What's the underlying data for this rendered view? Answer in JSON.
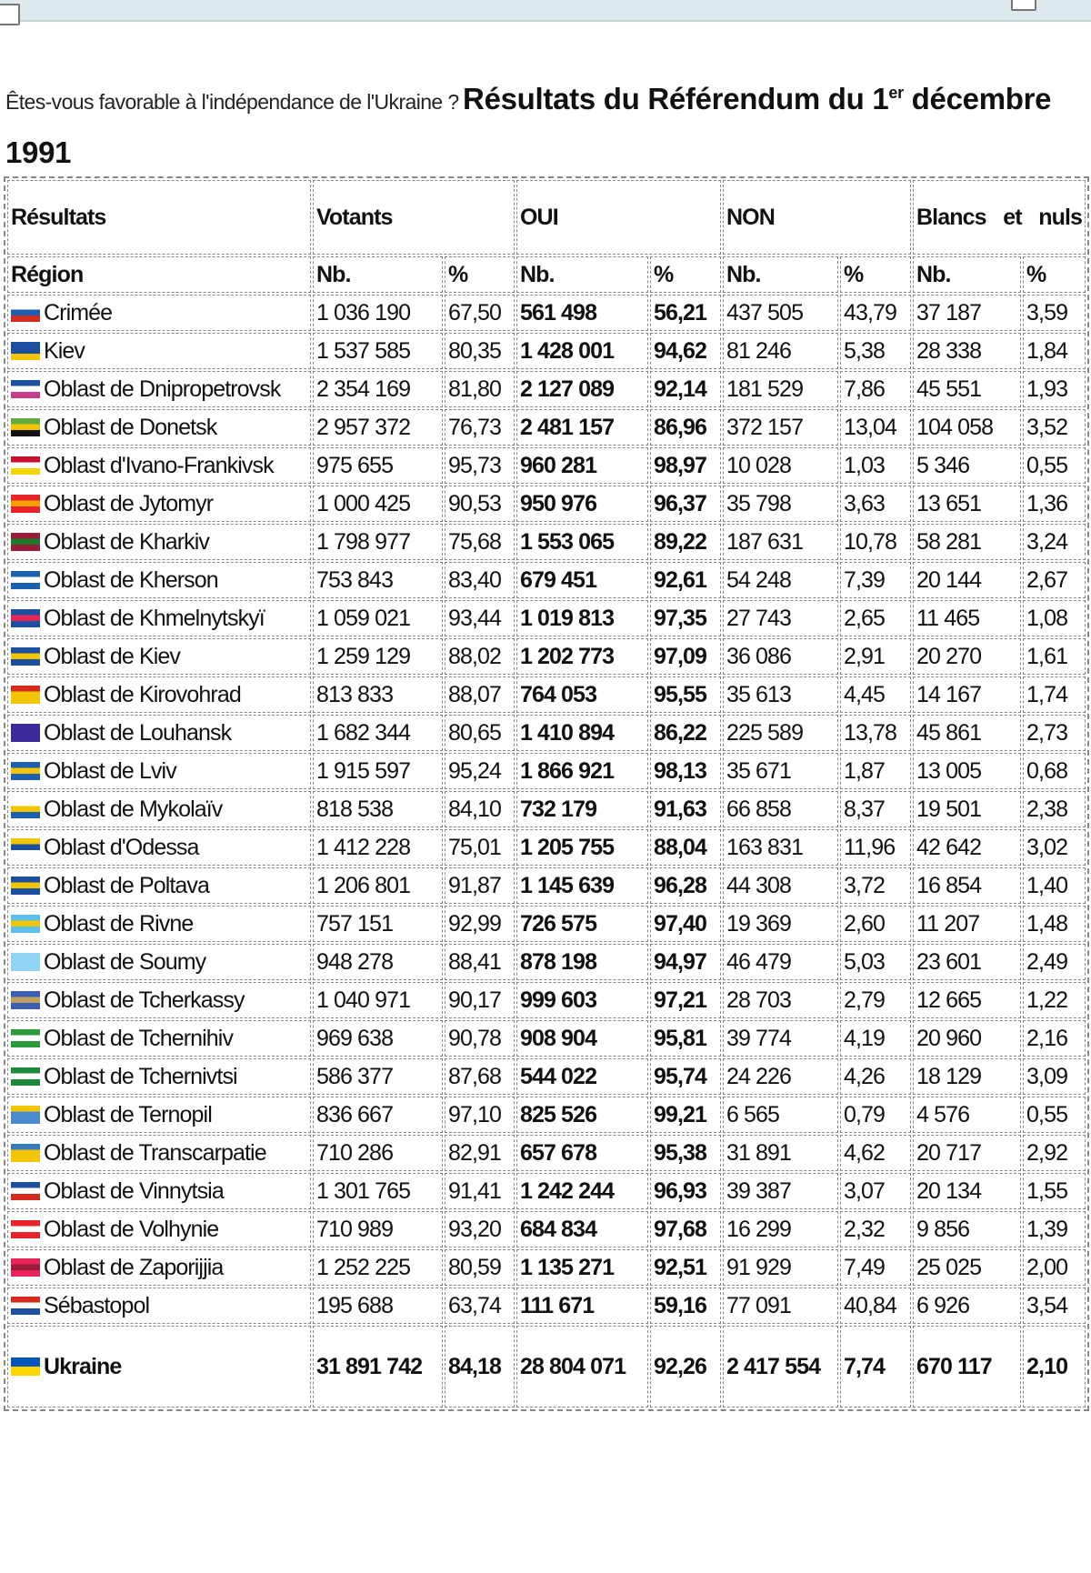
{
  "title": {
    "question": "Êtes-vous favorable à l'indépendance de l'Ukraine ?",
    "heading_pre": "Résultats du Référendum du 1",
    "heading_sup": "er",
    "heading_post": " décembre 1991"
  },
  "table": {
    "group_headers": [
      "Résultats",
      "Votants",
      "OUI",
      "NON",
      "Blancs et nuls"
    ],
    "sub_headers": [
      "Région",
      "Nb.",
      "%",
      "Nb.",
      "%",
      "Nb.",
      "%",
      "Nb.",
      "%"
    ],
    "rows": [
      {
        "region": "Crimée",
        "flag": [
          "#ffffff",
          "#1c5fb0",
          "#d52b1e"
        ],
        "cells": [
          "1 036 190",
          "67,50",
          "561 498",
          "56,21",
          "437 505",
          "43,79",
          "37 187",
          "3,59"
        ]
      },
      {
        "region": "Kiev",
        "flag": [
          "#1c4fa0",
          "#1c4fa0",
          "#f2c500"
        ],
        "cells": [
          "1 537 585",
          "80,35",
          "1 428 001",
          "94,62",
          "81 246",
          "5,38",
          "28 338",
          "1,84"
        ]
      },
      {
        "region": "Oblast de Dnipropetrovsk",
        "flag": [
          "#1c4fa0",
          "#ffffff",
          "#c83c8c"
        ],
        "cells": [
          "2 354 169",
          "81,80",
          "2 127 089",
          "92,14",
          "181 529",
          "7,86",
          "45 551",
          "1,93"
        ]
      },
      {
        "region": "Oblast de Donetsk",
        "flag": [
          "#66aa44",
          "#f2c500",
          "#111111"
        ],
        "cells": [
          "2 957 372",
          "76,73",
          "2 481 157",
          "86,96",
          "372 157",
          "13,04",
          "104 058",
          "3,52"
        ]
      },
      {
        "region": "Oblast d'Ivano-Frankivsk",
        "flag": [
          "#c8102e",
          "#ffffff",
          "#f2d500"
        ],
        "cells": [
          "975 655",
          "95,73",
          "960 281",
          "98,97",
          "10 028",
          "1,03",
          "5 346",
          "0,55"
        ]
      },
      {
        "region": "Oblast de Jytomyr",
        "flag": [
          "#e8242a",
          "#f5a000",
          "#e8242a"
        ],
        "cells": [
          "1 000 425",
          "90,53",
          "950 976",
          "96,37",
          "35 798",
          "3,63",
          "13 651",
          "1,36"
        ]
      },
      {
        "region": "Oblast de Kharkiv",
        "flag": [
          "#9b1c3a",
          "#1c7a2a",
          "#9b1c3a"
        ],
        "cells": [
          "1 798 977",
          "75,68",
          "1 553 065",
          "89,22",
          "187 631",
          "10,78",
          "58 281",
          "3,24"
        ]
      },
      {
        "region": "Oblast de Kherson",
        "flag": [
          "#1c5fb0",
          "#ffffff",
          "#1c5fb0"
        ],
        "cells": [
          "753 843",
          "83,40",
          "679 451",
          "92,61",
          "54 248",
          "7,39",
          "20 144",
          "2,67"
        ]
      },
      {
        "region": "Oblast de Khmelnytskyï",
        "flag": [
          "#1c4fa0",
          "#e8245a",
          "#1c4fa0"
        ],
        "cells": [
          "1 059 021",
          "93,44",
          "1 019 813",
          "97,35",
          "27 743",
          "2,65",
          "11 465",
          "1,08"
        ]
      },
      {
        "region": "Oblast de Kiev",
        "flag": [
          "#1c4fa0",
          "#f2c500",
          "#1c4fa0"
        ],
        "cells": [
          "1 259 129",
          "88,02",
          "1 202 773",
          "97,09",
          "36 086",
          "2,91",
          "20 270",
          "1,61"
        ]
      },
      {
        "region": "Oblast de Kirovohrad",
        "flag": [
          "#d52b1e",
          "#f2c500",
          "#f2c500"
        ],
        "cells": [
          "813 833",
          "88,07",
          "764 053",
          "95,55",
          "35 613",
          "4,45",
          "14 167",
          "1,74"
        ]
      },
      {
        "region": "Oblast de Louhansk",
        "flag": [
          "#3a2a9a",
          "#3a2a9a",
          "#3a2a9a"
        ],
        "cells": [
          "1 682 344",
          "80,65",
          "1 410 894",
          "86,22",
          "225 589",
          "13,78",
          "45 861",
          "2,73"
        ]
      },
      {
        "region": "Oblast de Lviv",
        "flag": [
          "#1c5fb0",
          "#f2c500",
          "#1c5fb0"
        ],
        "cells": [
          "1 915 597",
          "95,24",
          "1 866 921",
          "98,13",
          "35 671",
          "1,87",
          "13 005",
          "0,68"
        ]
      },
      {
        "region": "Oblast de Mykolaïv",
        "flag": [
          "#ffffff",
          "#f2c500",
          "#1c5fb0"
        ],
        "cells": [
          "818 538",
          "84,10",
          "732 179",
          "91,63",
          "66 858",
          "8,37",
          "19 501",
          "2,38"
        ]
      },
      {
        "region": "Oblast d'Odessa",
        "flag": [
          "#f2c500",
          "#1c4fa0",
          "#ffffff"
        ],
        "cells": [
          "1 412 228",
          "75,01",
          "1 205 755",
          "88,04",
          "163 831",
          "11,96",
          "42 642",
          "3,02"
        ]
      },
      {
        "region": "Oblast de Poltava",
        "flag": [
          "#1c4fa0",
          "#f2c500",
          "#1c4fa0"
        ],
        "cells": [
          "1 206 801",
          "91,87",
          "1 145 639",
          "96,28",
          "44 308",
          "3,72",
          "16 854",
          "1,40"
        ]
      },
      {
        "region": "Oblast de Rivne",
        "flag": [
          "#5bc0eb",
          "#f2c500",
          "#5bc0eb"
        ],
        "cells": [
          "757 151",
          "92,99",
          "726 575",
          "97,40",
          "19 369",
          "2,60",
          "11 207",
          "1,48"
        ]
      },
      {
        "region": "Oblast de Soumy",
        "flag": [
          "#8fd4f0",
          "#8fd4f0",
          "#8fd4f0"
        ],
        "cells": [
          "948 278",
          "88,41",
          "878 198",
          "94,97",
          "46 479",
          "5,03",
          "23 601",
          "2,49"
        ]
      },
      {
        "region": "Oblast de Tcherkassy",
        "flag": [
          "#3a5fb0",
          "#c0a060",
          "#3a5fb0"
        ],
        "cells": [
          "1 040 971",
          "90,17",
          "999 603",
          "97,21",
          "28 703",
          "2,79",
          "12 665",
          "1,22"
        ]
      },
      {
        "region": "Oblast de Tchernihiv",
        "flag": [
          "#2a9a3a",
          "#ffffff",
          "#2a9a3a"
        ],
        "cells": [
          "969 638",
          "90,78",
          "908 904",
          "95,81",
          "39 774",
          "4,19",
          "20 960",
          "2,16"
        ]
      },
      {
        "region": "Oblast de Tchernivtsi",
        "flag": [
          "#1c8a3a",
          "#ffffff",
          "#1c8a3a"
        ],
        "cells": [
          "586 377",
          "87,68",
          "544 022",
          "95,74",
          "24 226",
          "4,26",
          "18 129",
          "3,09"
        ]
      },
      {
        "region": "Oblast de Ternopil",
        "flag": [
          "#f2c500",
          "#4a8ad0",
          "#4a8ad0"
        ],
        "cells": [
          "836 667",
          "97,10",
          "825 526",
          "99,21",
          "6 565",
          "0,79",
          "4 576",
          "0,55"
        ]
      },
      {
        "region": "Oblast de Transcarpatie",
        "flag": [
          "#3a7ac0",
          "#f2c500",
          "#f2c500"
        ],
        "cells": [
          "710 286",
          "82,91",
          "657 678",
          "95,38",
          "31 891",
          "4,62",
          "20 717",
          "2,92"
        ]
      },
      {
        "region": "Oblast de Vinnytsia",
        "flag": [
          "#1c4fa0",
          "#ffffff",
          "#d52b1e"
        ],
        "cells": [
          "1 301 765",
          "91,41",
          "1 242 244",
          "96,93",
          "39 387",
          "3,07",
          "20 134",
          "1,55"
        ]
      },
      {
        "region": "Oblast de Volhynie",
        "flag": [
          "#e8242a",
          "#ffffff",
          "#e8242a"
        ],
        "cells": [
          "710 989",
          "93,20",
          "684 834",
          "97,68",
          "16 299",
          "2,32",
          "9 856",
          "1,39"
        ]
      },
      {
        "region": "Oblast de Zaporijjia",
        "flag": [
          "#e8245a",
          "#9b1c3a",
          "#e8245a"
        ],
        "cells": [
          "1 252 225",
          "80,59",
          "1 135 271",
          "92,51",
          "91 929",
          "7,49",
          "25 025",
          "2,00"
        ]
      },
      {
        "region": "Sébastopol",
        "flag": [
          "#d52b1e",
          "#ffffff",
          "#1c4fa0"
        ],
        "cells": [
          "195 688",
          "63,74",
          "111 671",
          "59,16",
          "77 091",
          "40,84",
          "6 926",
          "3,54"
        ]
      }
    ],
    "total": {
      "region": "Ukraine",
      "flag": [
        "#0057b7",
        "#0057b7",
        "#ffd700"
      ],
      "cells": [
        "31 891 742",
        "84,18",
        "28 804 071",
        "92,26",
        "2 417 554",
        "7,74",
        "670 117",
        "2,10"
      ]
    }
  }
}
